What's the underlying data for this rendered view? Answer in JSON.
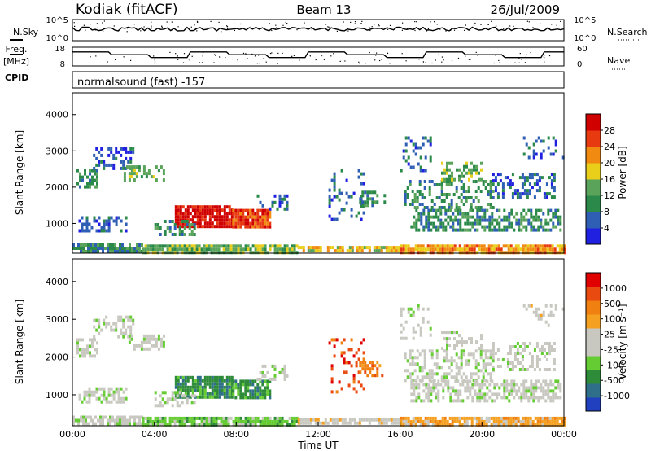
{
  "header": {
    "station": "Kodiak (fitACF)",
    "beam": "Beam 13",
    "date": "26/Jul/2009"
  },
  "side_labels": {
    "nsky": "N.Sky",
    "nsearch": "N.Search",
    "freq": "Freq.",
    "freq_unit": "[MHz]",
    "nave": "Nave",
    "cpid": "CPID",
    "cpid_text": "normalsound (fast) -157"
  },
  "chart_data": [
    {
      "type": "line",
      "name": "noise-panel",
      "y_ticks": [
        "10^5",
        "10^0"
      ],
      "y2_ticks": [
        "10^5",
        "10^0"
      ],
      "series": [
        {
          "name": "N.Sky"
        },
        {
          "name": "N.Search"
        }
      ]
    },
    {
      "type": "line",
      "name": "frequency-panel",
      "y_ticks": [
        "18",
        "8"
      ],
      "y2_ticks": [
        "60",
        "0"
      ],
      "series": [
        {
          "name": "Freq."
        },
        {
          "name": "Nave"
        }
      ]
    },
    {
      "type": "heatmap",
      "name": "power-panel",
      "ylabel": "Slant Range [km]",
      "ylim": [
        180,
        4600
      ],
      "y_ticks": [
        1000,
        2000,
        3000,
        4000
      ],
      "colorbar": {
        "label": "Power [dB]",
        "ticks": [
          "28",
          "24",
          "20",
          "16",
          "12",
          "8",
          "4"
        ],
        "colors": [
          "#2020e0",
          "#2f5fb4",
          "#2b8a4a",
          "#5aa35a",
          "#e9ce1a",
          "#f08a10",
          "#e83a10",
          "#d00000"
        ]
      }
    },
    {
      "type": "heatmap",
      "name": "velocity-panel",
      "xlabel": "Time UT",
      "ylabel": "Slant Range [km]",
      "ylim": [
        180,
        4600
      ],
      "y_ticks": [
        1000,
        2000,
        3000,
        4000
      ],
      "x_ticks": [
        "00:00",
        "04:00",
        "08:00",
        "12:00",
        "16:00",
        "20:00",
        "00:00"
      ],
      "xlim_hours": [
        0,
        24
      ],
      "colorbar": {
        "label": "Velocity [m s⁻¹]",
        "ticks": [
          "1000",
          "500",
          "100",
          "25",
          "-25",
          "-100",
          "-500",
          "-1000"
        ],
        "colors": [
          "#2040c0",
          "#2f6f8a",
          "#2e8b3a",
          "#66cc33",
          "#c8c8c0",
          "#c8c8c0",
          "#f5a020",
          "#f08010",
          "#e84a10",
          "#e00000"
        ]
      }
    }
  ]
}
